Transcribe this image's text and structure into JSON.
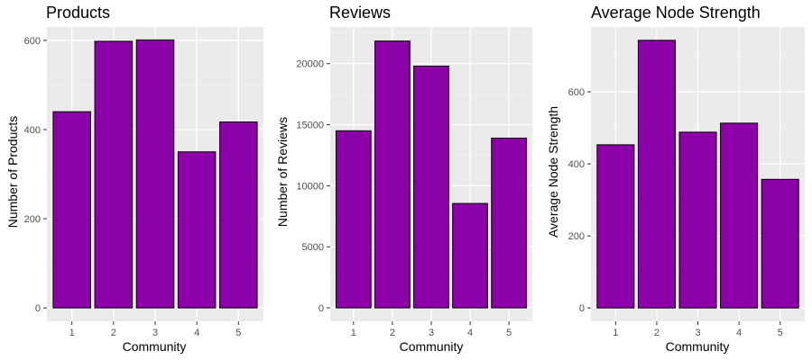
{
  "colors": {
    "panel_bg": "#EBEBEB",
    "grid_major": "#FFFFFF",
    "grid_minor": "#F5F5F5",
    "bar_fill": "#8B00A7",
    "bar_stroke": "#000000",
    "tick_text": "#4D4D4D"
  },
  "chart_data": [
    {
      "type": "bar",
      "title": "Products",
      "xlabel": "Community",
      "ylabel": "Number of Products",
      "categories": [
        "1",
        "2",
        "3",
        "4",
        "5"
      ],
      "values": [
        440,
        598,
        601,
        350,
        417
      ],
      "ylim": [
        -30,
        630
      ],
      "yticks": [
        0,
        200,
        400,
        600
      ],
      "grid": true
    },
    {
      "type": "bar",
      "title": "Reviews",
      "xlabel": "Community",
      "ylabel": "Number of Reviews",
      "categories": [
        "1",
        "2",
        "3",
        "4",
        "5"
      ],
      "values": [
        14500,
        21850,
        19800,
        8550,
        13900
      ],
      "ylim": [
        -1100,
        23000
      ],
      "yticks": [
        0,
        5000,
        10000,
        15000,
        20000
      ],
      "grid": true
    },
    {
      "type": "bar",
      "title": "Average Node Strength",
      "xlabel": "Community",
      "ylabel": "Average Node Strength",
      "categories": [
        "1",
        "2",
        "3",
        "4",
        "5"
      ],
      "values": [
        453,
        743,
        488,
        513,
        357
      ],
      "ylim": [
        -37,
        780
      ],
      "yticks": [
        0,
        200,
        400,
        600
      ],
      "grid": true
    }
  ]
}
